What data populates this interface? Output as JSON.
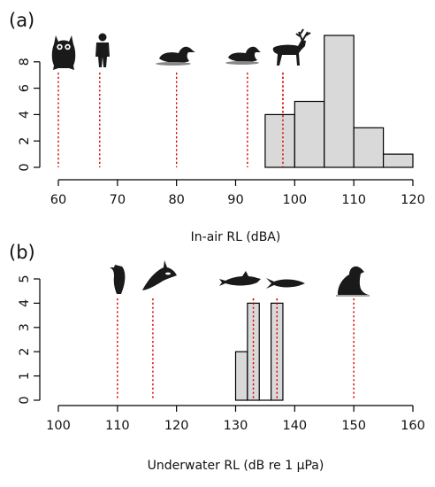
{
  "chart_data": [
    {
      "type": "bar",
      "subtype": "histogram",
      "panel_label": "(a)",
      "xlabel": "In-air RL (dBA)",
      "ylabel": "",
      "xlim": [
        60,
        120
      ],
      "ylim": [
        0,
        10
      ],
      "x_ticks": [
        60,
        70,
        80,
        90,
        100,
        110,
        120
      ],
      "y_ticks": [
        0,
        2,
        4,
        6,
        8
      ],
      "bins": [
        {
          "from": 95,
          "to": 100,
          "count": 4
        },
        {
          "from": 100,
          "to": 105,
          "count": 5
        },
        {
          "from": 105,
          "to": 110,
          "count": 10
        },
        {
          "from": 110,
          "to": 115,
          "count": 3
        },
        {
          "from": 115,
          "to": 120,
          "count": 1
        }
      ],
      "reference_lines": [
        {
          "x": 60,
          "icon": "owl-icon"
        },
        {
          "x": 67,
          "icon": "human-icon"
        },
        {
          "x": 80,
          "icon": "loon-icon"
        },
        {
          "x": 92,
          "icon": "duck-icon"
        },
        {
          "x": 98,
          "icon": "caribou-icon"
        }
      ],
      "reference_line_color": "#d40000",
      "bar_color": "#d9d9d9",
      "grid": false
    },
    {
      "type": "bar",
      "subtype": "histogram",
      "panel_label": "(b)",
      "xlabel": "Underwater RL (dB re 1 µPa)",
      "ylabel": "",
      "xlim": [
        100,
        160
      ],
      "ylim": [
        0,
        5
      ],
      "x_ticks": [
        100,
        110,
        120,
        130,
        140,
        150,
        160
      ],
      "y_ticks": [
        0,
        1,
        2,
        3,
        4,
        5
      ],
      "bins": [
        {
          "from": 130,
          "to": 132,
          "count": 2
        },
        {
          "from": 132,
          "to": 134,
          "count": 4
        },
        {
          "from": 134,
          "to": 136,
          "count": 0
        },
        {
          "from": 136,
          "to": 138,
          "count": 4
        }
      ],
      "reference_lines": [
        {
          "x": 110,
          "icon": "seabird-icon"
        },
        {
          "x": 116,
          "icon": "orca-icon"
        },
        {
          "x": 133,
          "icon": "porpoise-icon"
        },
        {
          "x": 137,
          "icon": "fish-icon"
        },
        {
          "x": 150,
          "icon": "seal-icon"
        }
      ],
      "reference_line_color": "#d40000",
      "bar_color": "#d9d9d9",
      "grid": false
    }
  ]
}
